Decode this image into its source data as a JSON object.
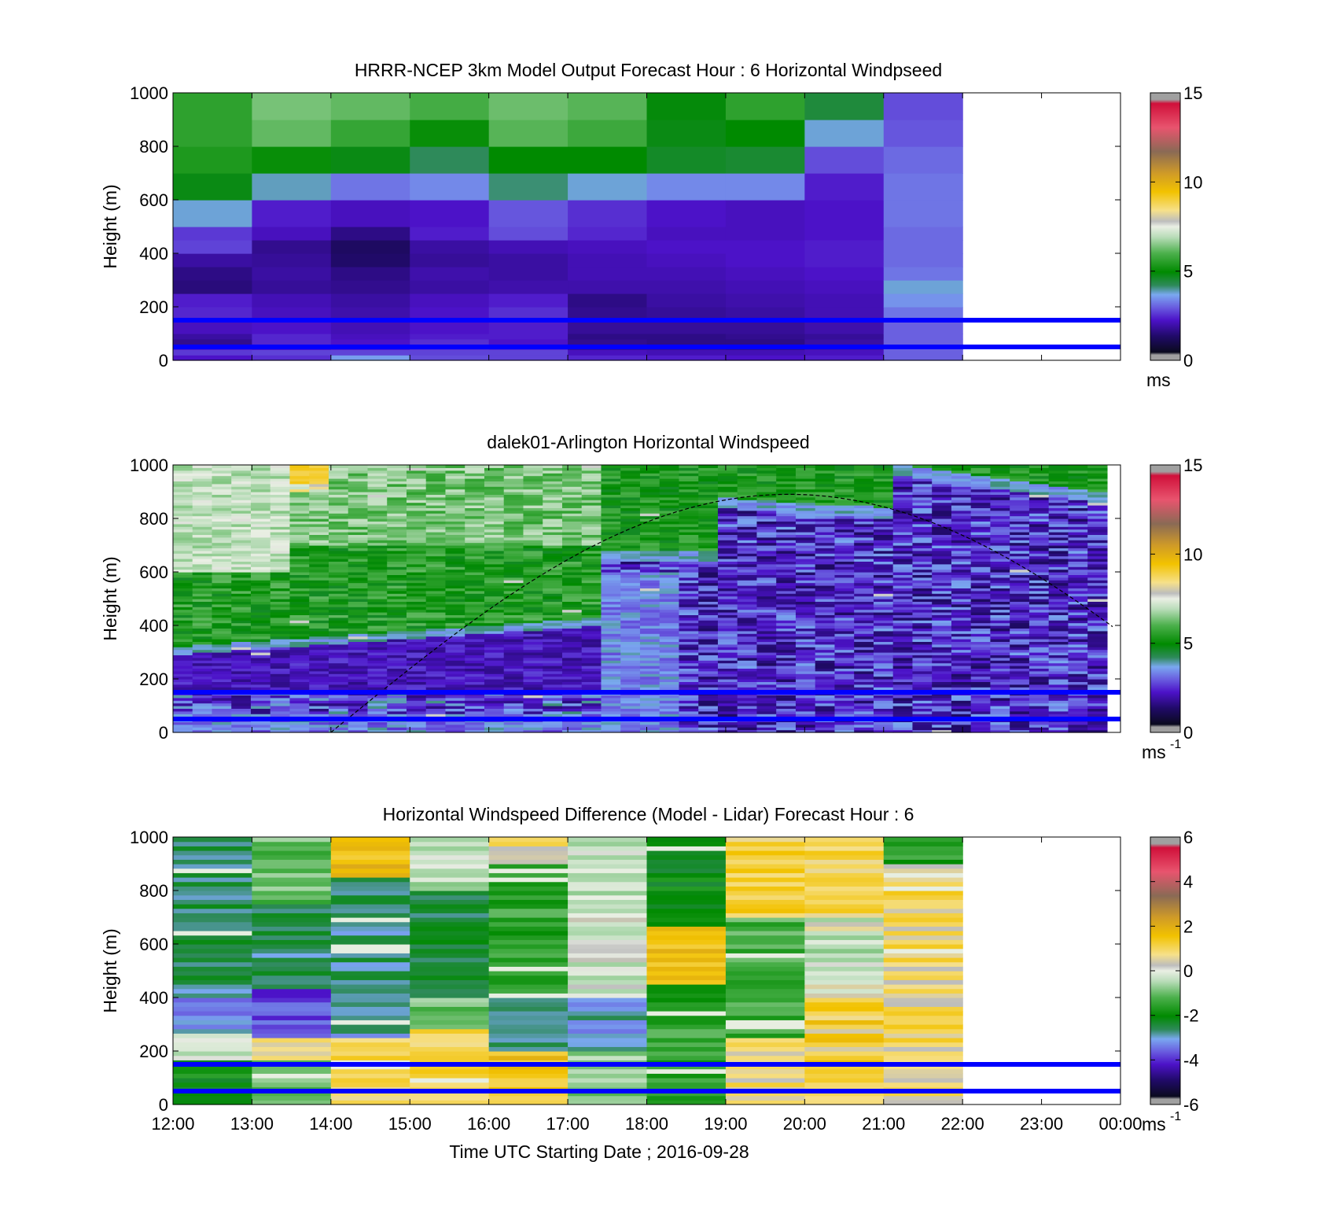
{
  "time_ticks": [
    "12:00",
    "13:00",
    "14:00",
    "15:00",
    "16:00",
    "17:00",
    "18:00",
    "19:00",
    "20:00",
    "21:00",
    "22:00",
    "23:00",
    "00:00"
  ],
  "xlabel": "Time UTC  Starting Date ; 2016-09-28",
  "chart_data": [
    {
      "type": "heatmap",
      "title": "HRRR-NCEP 3km Model Output   Forecast Hour : 6 Horizontal Windpseed",
      "ylabel": "Height (m)",
      "ylim": [
        0,
        1000
      ],
      "yticks": [
        "0",
        "200",
        "400",
        "600",
        "800",
        "1000"
      ],
      "x_hours": [
        12,
        13,
        14,
        15,
        16,
        17,
        18,
        19,
        20,
        21,
        22,
        23,
        24
      ],
      "data_hours": [
        12,
        22
      ],
      "level_edges_m": [
        0,
        20,
        40,
        60,
        80,
        100,
        150,
        200,
        250,
        300,
        350,
        400,
        450,
        500,
        600,
        700,
        800,
        900,
        1000
      ],
      "columns": [
        [
          2.0,
          2.4,
          2.1,
          1.4,
          1.6,
          1.9,
          2.2,
          2.1,
          1.2,
          1.3,
          1.6,
          2.5,
          2.4,
          3.6,
          4.8,
          5.4,
          5.6,
          5.6
        ],
        [
          2.3,
          2.5,
          2.0,
          2.2,
          2.2,
          2.0,
          1.9,
          1.8,
          1.5,
          1.6,
          1.5,
          1.4,
          1.9,
          2.1,
          3.7,
          5.1,
          6.2,
          6.4
        ],
        [
          3.4,
          2.5,
          2.1,
          2.0,
          1.9,
          1.8,
          1.7,
          1.6,
          1.4,
          1.3,
          1.0,
          0.9,
          1.3,
          1.9,
          3.0,
          4.8,
          5.7,
          6.2
        ],
        [
          2.6,
          2.5,
          2.3,
          2.3,
          2.1,
          2.0,
          2.0,
          1.9,
          1.6,
          1.7,
          1.5,
          1.6,
          2.1,
          2.0,
          3.2,
          4.1,
          5.1,
          5.9
        ],
        [
          2.5,
          2.5,
          2.2,
          2.0,
          2.1,
          2.1,
          2.3,
          2.1,
          1.7,
          1.6,
          1.6,
          1.8,
          2.6,
          2.7,
          4.0,
          5.0,
          6.1,
          6.3
        ],
        [
          2.2,
          1.9,
          1.5,
          1.4,
          1.3,
          1.5,
          1.4,
          1.3,
          1.7,
          1.8,
          1.8,
          1.9,
          2.2,
          2.3,
          3.6,
          5.0,
          5.8,
          6.1
        ],
        [
          2.1,
          1.8,
          1.5,
          1.3,
          1.3,
          1.5,
          1.5,
          1.6,
          1.7,
          1.8,
          1.9,
          2.0,
          1.9,
          2.0,
          3.2,
          4.6,
          4.8,
          4.9
        ],
        [
          2.0,
          1.8,
          1.4,
          1.3,
          1.4,
          1.5,
          1.6,
          1.7,
          1.8,
          1.9,
          2.0,
          2.0,
          1.9,
          1.9,
          3.2,
          4.5,
          5.0,
          5.6
        ],
        [
          2.1,
          1.9,
          1.7,
          1.6,
          1.5,
          1.7,
          1.8,
          1.8,
          1.9,
          2.0,
          2.1,
          2.1,
          2.0,
          2.0,
          2.1,
          2.6,
          3.6,
          4.4
        ],
        [
          2.8,
          2.8,
          2.8,
          2.8,
          2.8,
          2.8,
          3.0,
          3.3,
          3.6,
          3.0,
          2.9,
          2.9,
          2.9,
          3.0,
          3.0,
          2.9,
          2.7,
          2.6
        ]
      ],
      "colorbar": {
        "min": 0,
        "max": 15,
        "ticks": [
          "0",
          "5",
          "10",
          "15"
        ],
        "unit": "ms"
      }
    },
    {
      "type": "heatmap",
      "title": "dalek01-Arlington  Horizontal Windspeed",
      "ylabel": "Height (m)",
      "ylim": [
        0,
        1000
      ],
      "yticks": [
        "0",
        "200",
        "400",
        "600",
        "800",
        "1000"
      ],
      "x_hours": [
        12,
        13,
        14,
        15,
        16,
        17,
        18,
        19,
        20,
        21,
        22,
        23,
        24
      ],
      "data_hours": [
        12,
        23.83
      ],
      "overlay_curve_note": "dashed curve peaks near 890 m at ~19:50 UTC",
      "colorbar": {
        "min": 0,
        "max": 15,
        "ticks": [
          "0",
          "5",
          "10",
          "15"
        ],
        "unit": "ms",
        "unit_sup": "-1"
      }
    },
    {
      "type": "heatmap",
      "title": "Horizontal Windspeed Difference (Model - Lidar) Forecast Hour : 6",
      "ylabel": "Height (m)",
      "ylim": [
        0,
        1000
      ],
      "yticks": [
        "0",
        "200",
        "400",
        "600",
        "800",
        "1000"
      ],
      "x_hours": [
        12,
        13,
        14,
        15,
        16,
        17,
        18,
        19,
        20,
        21,
        22,
        23,
        24
      ],
      "data_hours": [
        12,
        22
      ],
      "colorbar": {
        "min": -6,
        "max": 6,
        "ticks": [
          "-6",
          "-4",
          "-2",
          "0",
          "2",
          "4",
          "6"
        ],
        "unit": "ms",
        "unit_sup": "-1"
      }
    }
  ],
  "reference_lines_m": [
    50,
    150
  ]
}
